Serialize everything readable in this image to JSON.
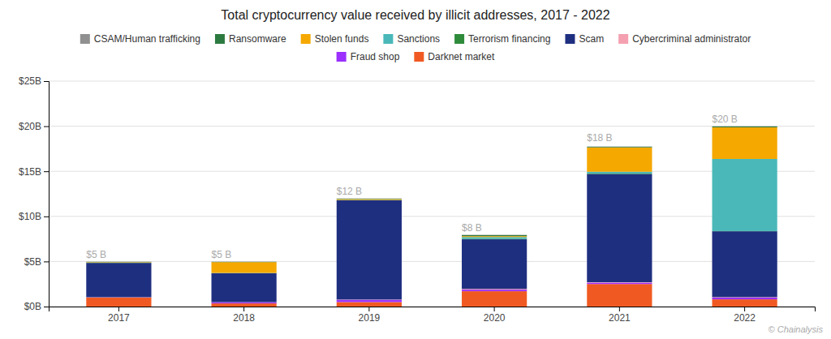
{
  "chart_data": {
    "type": "bar",
    "stacked": true,
    "title": "Total cryptocurrency value received by illicit addresses, 2017 - 2022",
    "categories": [
      "2017",
      "2018",
      "2019",
      "2020",
      "2021",
      "2022"
    ],
    "series": [
      {
        "name": "Darknet market",
        "color": "#f05a22",
        "values": [
          1.0,
          0.35,
          0.5,
          1.7,
          2.5,
          0.8
        ]
      },
      {
        "name": "Fraud shop",
        "color": "#9b30ff",
        "values": [
          0.02,
          0.12,
          0.25,
          0.18,
          0.15,
          0.2
        ]
      },
      {
        "name": "Cybercriminal administrator",
        "color": "#f4a0b0",
        "values": [
          0.02,
          0.02,
          0.03,
          0.08,
          0.05,
          0.05
        ]
      },
      {
        "name": "Scam",
        "color": "#1f2f80",
        "values": [
          3.8,
          3.2,
          11.0,
          5.5,
          12.0,
          7.3
        ]
      },
      {
        "name": "Terrorism financing",
        "color": "#2e8b3a",
        "values": [
          0.02,
          0.02,
          0.02,
          0.05,
          0.05,
          0.02
        ]
      },
      {
        "name": "Sanctions",
        "color": "#4ab8b8",
        "values": [
          0.02,
          0.02,
          0.02,
          0.2,
          0.2,
          8.0
        ]
      },
      {
        "name": "Stolen funds",
        "color": "#f5a800",
        "values": [
          0.05,
          1.2,
          0.1,
          0.1,
          2.7,
          3.5
        ]
      },
      {
        "name": "Ransomware",
        "color": "#2d7a40",
        "values": [
          0.03,
          0.03,
          0.05,
          0.12,
          0.08,
          0.1
        ]
      },
      {
        "name": "CSAM/Human trafficking",
        "color": "#909090",
        "values": [
          0.02,
          0.02,
          0.02,
          0.02,
          0.02,
          0.02
        ]
      }
    ],
    "annotations": [
      {
        "text": "$5 B",
        "x": "2017",
        "y": 5.2
      },
      {
        "text": "$5 B",
        "x": "2018",
        "y": 5.2
      },
      {
        "text": "$12 B",
        "x": "2019",
        "y": 12.2
      },
      {
        "text": "$8 B",
        "x": "2020",
        "y": 8.2
      },
      {
        "text": "$18 B",
        "x": "2021",
        "y": 18.2
      },
      {
        "text": "$20 B",
        "x": "2022",
        "y": 20.2
      }
    ],
    "source": "© Chainalysis",
    "ylim": [
      0,
      25
    ],
    "yticks": [
      {
        "value": 0,
        "label": "$0B"
      },
      {
        "value": 5,
        "label": "$5B"
      },
      {
        "value": 10,
        "label": "$10B"
      },
      {
        "value": 15,
        "label": "$15B"
      },
      {
        "value": 20,
        "label": "$20B"
      },
      {
        "value": 25,
        "label": "$25B"
      }
    ],
    "grid": true,
    "legend": "top"
  }
}
